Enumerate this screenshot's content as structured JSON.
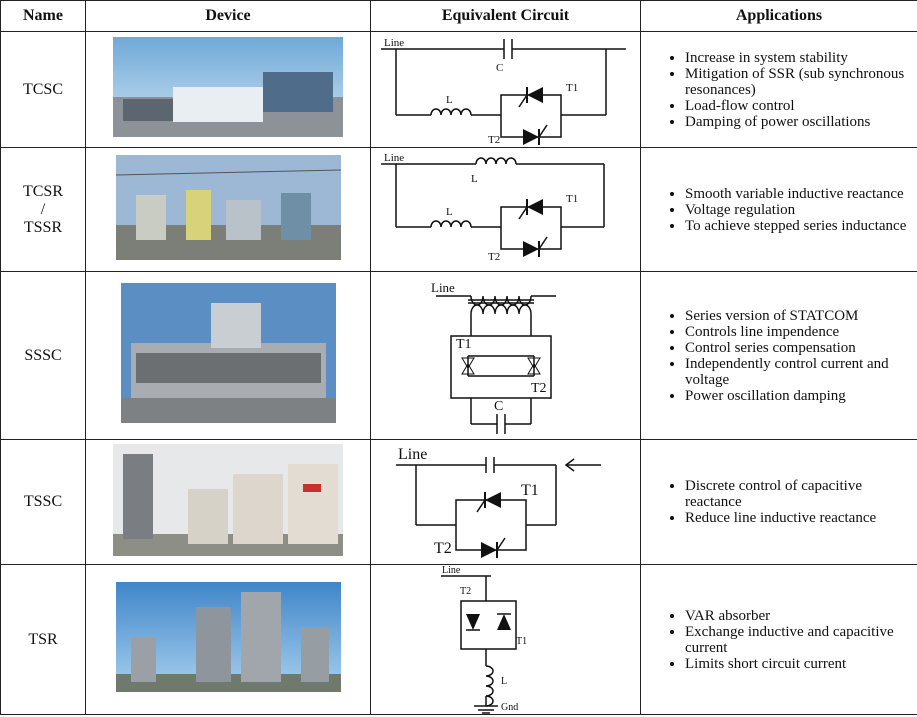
{
  "table": {
    "headers": [
      "Name",
      "Device",
      "Equivalent Circuit",
      "Applications"
    ],
    "rows": [
      {
        "name_lines": [
          "TCSC"
        ],
        "circuit_labels": [
          "Line",
          "C",
          "L",
          "T1",
          "T2"
        ],
        "applications": [
          "Increase in system stability",
          "Mitigation of SSR (sub synchronous resonances)",
          "Load-flow control",
          "Damping of power oscillations"
        ]
      },
      {
        "name_lines": [
          "TCSR",
          "/",
          "TSSR"
        ],
        "circuit_labels": [
          "Line",
          "L",
          "L",
          "T1",
          "T2"
        ],
        "applications": [
          "Smooth variable inductive reactance",
          "Voltage regulation",
          "To achieve stepped series inductance"
        ]
      },
      {
        "name_lines": [
          "SSSC"
        ],
        "circuit_labels": [
          "Line",
          "T1",
          "T2",
          "C"
        ],
        "applications": [
          "Series version of STATCOM",
          "Controls line impendence",
          "Control series compensation",
          "Independently control current and voltage",
          "Power oscillation damping"
        ]
      },
      {
        "name_lines": [
          "TSSC"
        ],
        "circuit_labels": [
          "Line",
          "T1",
          "T2"
        ],
        "applications": [
          "Discrete control of capacitive reactance",
          "Reduce line inductive reactance"
        ]
      },
      {
        "name_lines": [
          "TSR"
        ],
        "circuit_labels": [
          "Line",
          "T2",
          "T1",
          "L",
          "Gnd"
        ],
        "applications": [
          "VAR absorber",
          "Exchange inductive and capacitive current",
          "Limits short circuit current"
        ]
      }
    ]
  }
}
